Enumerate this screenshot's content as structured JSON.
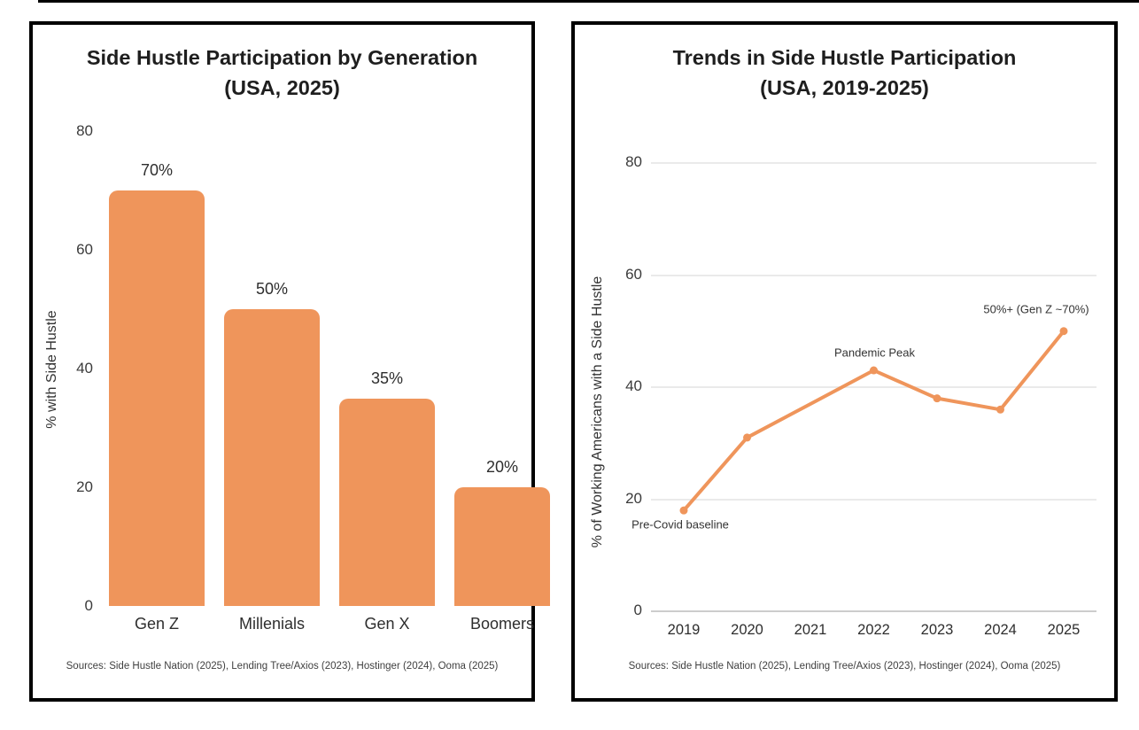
{
  "accent_color": "#EF955B",
  "grid_color": "#eaeaea",
  "panels": [
    {
      "title_line1": "Side Hustle Participation by Generation",
      "title_line2": "(USA, 2025)",
      "ylabel": "% with Side Hustle",
      "source": "Sources: Side Hustle Nation (2025), Lending Tree/Axios (2023), Hostinger (2024), Ooma (2025)"
    },
    {
      "title_line1": "Trends in Side Hustle Participation",
      "title_line2": "(USA, 2019-2025)",
      "ylabel": "% of Working Americans with a Side Hustle",
      "source": "Sources: Side Hustle Nation (2025), Lending Tree/Axios (2023), Hostinger (2024), Ooma (2025)"
    }
  ],
  "chart_data": [
    {
      "type": "bar",
      "title": "Side Hustle Participation by Generation (USA, 2025)",
      "categories": [
        "Gen Z",
        "Millenials",
        "Gen X",
        "Boomers"
      ],
      "values": [
        70,
        50,
        35,
        20
      ],
      "value_labels": [
        "70%",
        "50%",
        "35%",
        "20%"
      ],
      "xlabel": "",
      "ylabel": "% with Side Hustle",
      "ylim": [
        0,
        80
      ],
      "yticks": [
        0,
        20,
        40,
        60,
        80
      ],
      "grid": false,
      "bar_color": "#EF955B"
    },
    {
      "type": "line",
      "title": "Trends in Side Hustle Participation (USA, 2019-2025)",
      "x": [
        2019,
        2020,
        2021,
        2022,
        2023,
        2024,
        2025
      ],
      "values": [
        18,
        31,
        37,
        43,
        38,
        36,
        50
      ],
      "markers": [
        true,
        true,
        false,
        true,
        true,
        true,
        true
      ],
      "annotations": [
        {
          "x": 2019,
          "text": "Pre-Covid baseline"
        },
        {
          "x": 2022,
          "text": "Pandemic Peak"
        },
        {
          "x": 2025,
          "text": "50%+ (Gen Z ~70%)"
        }
      ],
      "xlabel": "",
      "ylabel": "% of Working Americans with a Side Hustle",
      "ylim": [
        0,
        80
      ],
      "yticks": [
        0,
        20,
        40,
        60,
        80
      ],
      "grid": true,
      "legend": false,
      "line_color": "#EF955B"
    }
  ]
}
